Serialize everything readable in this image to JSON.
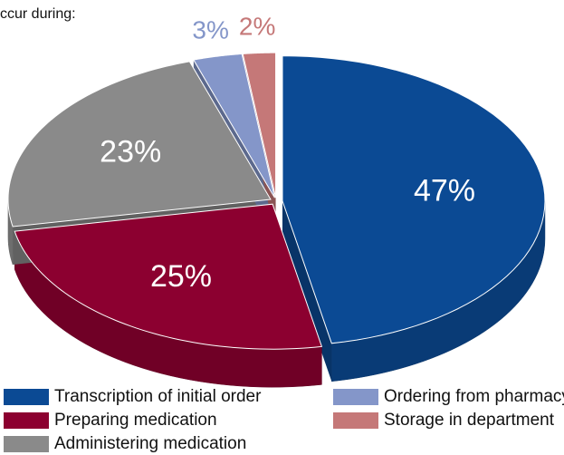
{
  "chart_data": {
    "type": "pie3d",
    "title": "ccur during:",
    "categories": [
      "Transcription of initial order",
      "Preparing medication",
      "Administering medication",
      "Ordering from pharmacy",
      "Storage in department"
    ],
    "values": [
      47,
      25,
      23,
      3,
      2
    ],
    "value_labels": [
      "47%",
      "25%",
      "23%",
      "3%",
      "2%"
    ],
    "colors": [
      "#0b4a94",
      "#8c0030",
      "#8a8a8a",
      "#8496c9",
      "#c57878"
    ]
  }
}
